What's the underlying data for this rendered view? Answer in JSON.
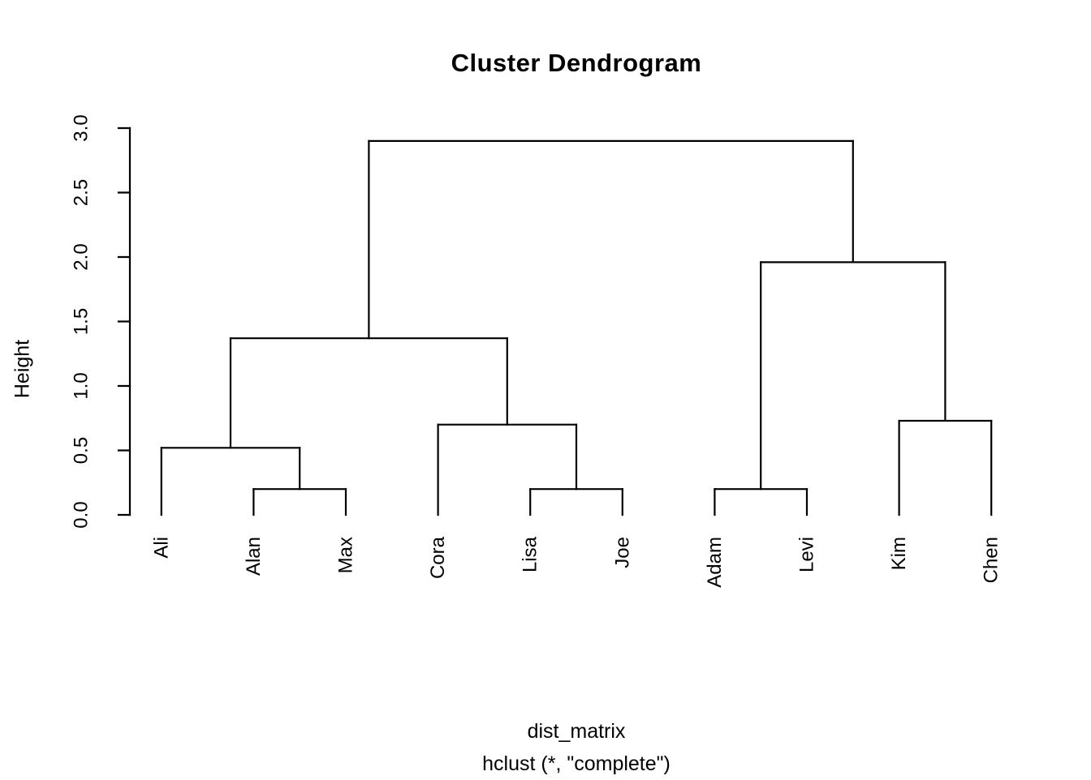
{
  "colors": {
    "background": "#ffffff",
    "foreground": "#000000"
  },
  "chart_data": {
    "type": "dendrogram",
    "title": "Cluster Dendrogram",
    "ylabel": "Height",
    "xlabel": "dist_matrix",
    "call_subtitle": "hclust (*, \"complete\")",
    "leaves": [
      "Ali",
      "Alan",
      "Max",
      "Cora",
      "Lisa",
      "Joe",
      "Adam",
      "Levi",
      "Kim",
      "Chen"
    ],
    "ylim": [
      0,
      3
    ],
    "ytick_values": [
      0,
      0.5,
      1,
      1.5,
      2,
      2.5,
      3
    ],
    "ytick_labels": [
      "0.0",
      "0.5",
      "1.0",
      "1.5",
      "2.0",
      "2.5",
      "3.0"
    ],
    "merge_note": "children entries: string = leaf name, number = index of earlier merge",
    "merges": [
      {
        "children": [
          "Alan",
          "Max"
        ],
        "height": 0.2
      },
      {
        "children": [
          "Lisa",
          "Joe"
        ],
        "height": 0.2
      },
      {
        "children": [
          "Adam",
          "Levi"
        ],
        "height": 0.2
      },
      {
        "children": [
          "Ali",
          0
        ],
        "height": 0.52
      },
      {
        "children": [
          "Cora",
          1
        ],
        "height": 0.7
      },
      {
        "children": [
          "Kim",
          "Chen"
        ],
        "height": 0.73
      },
      {
        "children": [
          3,
          4
        ],
        "height": 1.37
      },
      {
        "children": [
          2,
          5
        ],
        "height": 1.96
      },
      {
        "children": [
          6,
          7
        ],
        "height": 2.9
      }
    ],
    "grid": false,
    "legend_position": "none"
  }
}
